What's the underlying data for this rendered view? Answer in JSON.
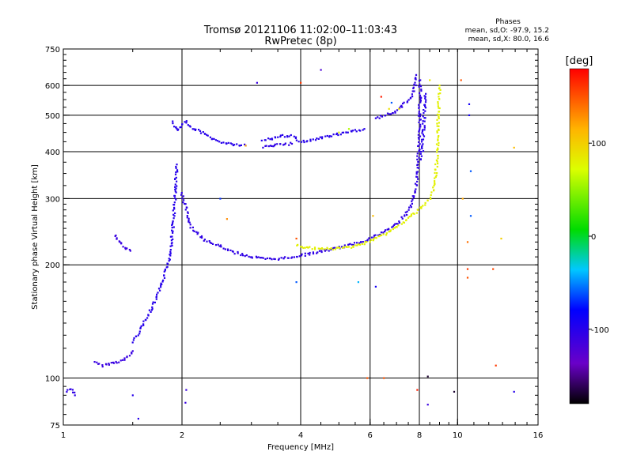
{
  "chart_data": {
    "type": "scatter",
    "title": "Tromsø 20121106 11:02:00–11:03:43",
    "subtitle": "RwPretec (8p)",
    "xlabel": "Frequency [MHz]",
    "ylabel": "Stationary phase Virtual Height [km]",
    "x_scale": "log",
    "y_scale": "log",
    "xlim": [
      1,
      16
    ],
    "ylim": [
      75,
      750
    ],
    "x_ticks": [
      1,
      2,
      4,
      6,
      8,
      10,
      16
    ],
    "x_tick_labels": [
      "1",
      "2",
      "4",
      "6",
      "8",
      "10",
      "16"
    ],
    "y_ticks": [
      75,
      100,
      200,
      300,
      400,
      500,
      600,
      750
    ],
    "y_tick_labels": [
      "75",
      "100",
      "200",
      "300",
      "400",
      "500",
      "600",
      "750"
    ],
    "grid": true,
    "stats": {
      "heading": "Phases",
      "o_line": "mean, sd,O: -97.9, 15.2",
      "x_line": "mean, sd,X:  80.0, 16.6"
    },
    "colorbar": {
      "label": "[deg]",
      "min": -180,
      "max": 180,
      "ticks": [
        100,
        0,
        -100
      ],
      "tick_labels": [
        "100",
        "0",
        "-100"
      ]
    },
    "series": [
      {
        "mode": "O",
        "segments": [
          {
            "phase": -105,
            "points": [
              [
                1.02,
                92
              ],
              [
                1.05,
                94
              ],
              [
                1.07,
                90
              ]
            ]
          },
          {
            "phase": -110,
            "points": [
              [
                1.2,
                110
              ],
              [
                1.25,
                108
              ],
              [
                1.3,
                109
              ],
              [
                1.35,
                110
              ],
              [
                1.4,
                111
              ],
              [
                1.45,
                113
              ],
              [
                1.5,
                118
              ]
            ]
          },
          {
            "phase": -100,
            "points": [
              [
                1.5,
                125
              ],
              [
                1.55,
                132
              ],
              [
                1.6,
                140
              ],
              [
                1.65,
                148
              ],
              [
                1.7,
                158
              ],
              [
                1.75,
                170
              ],
              [
                1.8,
                185
              ],
              [
                1.85,
                205
              ],
              [
                1.88,
                230
              ],
              [
                1.9,
                260
              ],
              [
                1.92,
                300
              ],
              [
                1.93,
                340
              ],
              [
                1.94,
                370
              ]
            ]
          },
          {
            "phase": -110,
            "points": [
              [
                1.35,
                240
              ],
              [
                1.38,
                232
              ],
              [
                1.42,
                225
              ],
              [
                1.45,
                220
              ],
              [
                1.48,
                218
              ]
            ]
          },
          {
            "phase": -100,
            "points": [
              [
                1.9,
                480
              ],
              [
                1.92,
                465
              ],
              [
                1.95,
                455
              ],
              [
                2.0,
                470
              ],
              [
                2.05,
                480
              ],
              [
                2.1,
                465
              ],
              [
                2.2,
                455
              ],
              [
                2.3,
                445
              ],
              [
                2.4,
                432
              ],
              [
                2.5,
                425
              ],
              [
                2.7,
                418
              ],
              [
                2.9,
                415
              ]
            ]
          },
          {
            "phase": -105,
            "points": [
              [
                2.0,
                310
              ],
              [
                2.05,
                280
              ],
              [
                2.1,
                255
              ],
              [
                2.2,
                240
              ],
              [
                2.3,
                232
              ],
              [
                2.5,
                224
              ],
              [
                2.7,
                216
              ],
              [
                3.0,
                210
              ],
              [
                3.3,
                207
              ],
              [
                3.6,
                208
              ],
              [
                4.0,
                212
              ],
              [
                4.5,
                217
              ],
              [
                5.0,
                222
              ],
              [
                5.5,
                228
              ],
              [
                6.0,
                235
              ],
              [
                6.5,
                245
              ],
              [
                7.0,
                257
              ],
              [
                7.3,
                268
              ],
              [
                7.6,
                285
              ],
              [
                7.8,
                310
              ],
              [
                7.9,
                345
              ],
              [
                7.95,
                390
              ],
              [
                8.0,
                450
              ],
              [
                8.02,
                520
              ],
              [
                8.03,
                580
              ],
              [
                8.04,
                620
              ]
            ]
          },
          {
            "phase": -100,
            "points": [
              [
                3.2,
                430
              ],
              [
                3.4,
                435
              ],
              [
                3.6,
                440
              ],
              [
                3.8,
                440
              ],
              [
                4.0,
                425
              ],
              [
                4.3,
                430
              ],
              [
                4.6,
                438
              ],
              [
                5.0,
                445
              ],
              [
                5.4,
                452
              ],
              [
                5.8,
                460
              ]
            ]
          },
          {
            "phase": -105,
            "points": [
              [
                3.2,
                412
              ],
              [
                3.4,
                415
              ],
              [
                3.6,
                418
              ],
              [
                3.8,
                420
              ]
            ]
          },
          {
            "phase": -105,
            "points": [
              [
                6.2,
                490
              ],
              [
                6.5,
                500
              ],
              [
                6.8,
                505
              ],
              [
                7.1,
                520
              ],
              [
                7.3,
                535
              ],
              [
                7.5,
                550
              ],
              [
                7.7,
                570
              ],
              [
                7.8,
                600
              ],
              [
                7.85,
                640
              ]
            ]
          },
          {
            "phase": -100,
            "points": [
              [
                8.1,
                380
              ],
              [
                8.15,
                420
              ],
              [
                8.2,
                470
              ],
              [
                8.25,
                520
              ],
              [
                8.3,
                570
              ]
            ]
          }
        ]
      },
      {
        "mode": "X",
        "segments": [
          {
            "phase": 80,
            "points": [
              [
                3.9,
                225
              ],
              [
                4.2,
                222
              ],
              [
                4.5,
                220
              ],
              [
                4.9,
                221
              ],
              [
                5.3,
                223
              ],
              [
                5.8,
                228
              ],
              [
                6.3,
                237
              ],
              [
                6.8,
                247
              ],
              [
                7.3,
                260
              ],
              [
                7.8,
                275
              ],
              [
                8.2,
                288
              ],
              [
                8.5,
                300
              ],
              [
                8.7,
                320
              ],
              [
                8.8,
                345
              ],
              [
                8.85,
                380
              ],
              [
                8.9,
                420
              ],
              [
                8.92,
                470
              ],
              [
                8.95,
                520
              ],
              [
                8.98,
                560
              ],
              [
                9.0,
                600
              ]
            ]
          }
        ]
      }
    ],
    "scattered_points": [
      {
        "x": 1.5,
        "y": 90,
        "phase": -100
      },
      {
        "x": 1.55,
        "y": 78,
        "phase": -100
      },
      {
        "x": 2.05,
        "y": 93,
        "phase": -110
      },
      {
        "x": 2.04,
        "y": 86,
        "phase": -110
      },
      {
        "x": 3.1,
        "y": 610,
        "phase": -110
      },
      {
        "x": 3.9,
        "y": 180,
        "phase": -60
      },
      {
        "x": 4.5,
        "y": 660,
        "phase": -120
      },
      {
        "x": 4.0,
        "y": 610,
        "phase": 160
      },
      {
        "x": 5.6,
        "y": 180,
        "phase": -40
      },
      {
        "x": 5.9,
        "y": 100,
        "phase": 150
      },
      {
        "x": 6.2,
        "y": 175,
        "phase": -90
      },
      {
        "x": 6.4,
        "y": 560,
        "phase": 170
      },
      {
        "x": 6.5,
        "y": 100,
        "phase": 150
      },
      {
        "x": 7.9,
        "y": 93,
        "phase": 170
      },
      {
        "x": 8.4,
        "y": 101,
        "phase": -170
      },
      {
        "x": 8.4,
        "y": 85,
        "phase": -110
      },
      {
        "x": 9.8,
        "y": 92,
        "phase": -170
      },
      {
        "x": 10.2,
        "y": 620,
        "phase": 150
      },
      {
        "x": 10.3,
        "y": 300,
        "phase": 120
      },
      {
        "x": 10.6,
        "y": 230,
        "phase": 140
      },
      {
        "x": 10.7,
        "y": 535,
        "phase": -90
      },
      {
        "x": 10.7,
        "y": 500,
        "phase": -90
      },
      {
        "x": 10.6,
        "y": 195,
        "phase": 160
      },
      {
        "x": 10.6,
        "y": 185,
        "phase": 150
      },
      {
        "x": 10.8,
        "y": 270,
        "phase": -60
      },
      {
        "x": 10.8,
        "y": 355,
        "phase": -60
      },
      {
        "x": 12.3,
        "y": 195,
        "phase": 155
      },
      {
        "x": 12.5,
        "y": 108,
        "phase": 160
      },
      {
        "x": 12.9,
        "y": 235,
        "phase": 100
      },
      {
        "x": 13.9,
        "y": 410,
        "phase": 110
      },
      {
        "x": 13.9,
        "y": 92,
        "phase": -100
      },
      {
        "x": 5.0,
        "y": 450,
        "phase": 80
      },
      {
        "x": 5.3,
        "y": 460,
        "phase": 60
      },
      {
        "x": 6.7,
        "y": 520,
        "phase": 90
      },
      {
        "x": 6.8,
        "y": 540,
        "phase": -60
      },
      {
        "x": 7.1,
        "y": 520,
        "phase": 90
      },
      {
        "x": 8.5,
        "y": 620,
        "phase": 85
      },
      {
        "x": 2.6,
        "y": 265,
        "phase": 130
      },
      {
        "x": 2.5,
        "y": 300,
        "phase": -70
      },
      {
        "x": 2.9,
        "y": 415,
        "phase": 120
      },
      {
        "x": 3.9,
        "y": 235,
        "phase": 150
      },
      {
        "x": 6.1,
        "y": 270,
        "phase": 110
      }
    ]
  }
}
